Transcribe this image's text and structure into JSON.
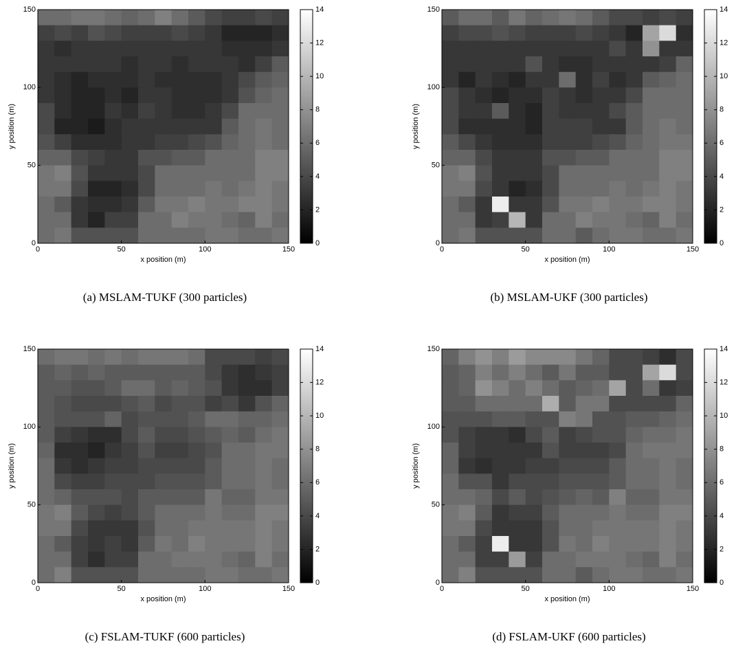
{
  "chart_data": [
    {
      "type": "heatmap",
      "caption": "(a) MSLAM-TUKF (300 particles)",
      "xlabel": "x position (m)",
      "ylabel": "y position (m)",
      "xlim": [
        0,
        150
      ],
      "ylim": [
        0,
        150
      ],
      "xticks": [
        0,
        50,
        100,
        150
      ],
      "yticks": [
        0,
        50,
        100,
        150
      ],
      "colormap": "gray",
      "clim": [
        0,
        14
      ],
      "cticks": [
        0,
        2,
        4,
        6,
        8,
        10,
        12,
        14
      ],
      "z": [
        [
          6,
          6,
          6.5,
          6.5,
          6,
          5.5,
          6,
          7,
          6,
          5,
          4,
          3.5,
          3.5,
          4,
          3.5
        ],
        [
          3.5,
          4,
          3.5,
          4.5,
          4,
          3.5,
          3.5,
          3.5,
          4,
          3.5,
          3,
          2,
          2,
          2,
          2.5
        ],
        [
          3,
          2.5,
          3,
          3,
          3,
          3,
          3,
          3,
          3,
          3,
          3,
          2.5,
          2.5,
          2.5,
          3
        ],
        [
          3,
          3,
          3,
          3,
          3,
          2.5,
          3,
          3,
          2.5,
          3,
          3,
          3,
          2.5,
          3.5,
          5
        ],
        [
          3,
          2.5,
          2,
          2.5,
          2.5,
          2.5,
          3,
          2.5,
          2.5,
          2.5,
          2.5,
          3,
          4,
          5,
          5.5
        ],
        [
          3,
          2.5,
          2,
          2,
          2.5,
          2,
          3,
          3,
          2.5,
          2.5,
          2.5,
          3,
          4.5,
          5.5,
          6
        ],
        [
          4,
          2.5,
          2,
          2,
          3,
          2.5,
          3.5,
          3,
          2.5,
          2.5,
          3,
          4,
          6,
          6,
          6
        ],
        [
          4,
          2,
          2,
          1.5,
          2.5,
          3,
          3,
          3,
          3,
          3,
          3,
          5,
          6,
          6.5,
          6
        ],
        [
          4.5,
          3.5,
          2.5,
          2.5,
          2.5,
          3,
          3,
          3.5,
          3.5,
          4,
          4.5,
          5.5,
          6,
          6.5,
          6
        ],
        [
          5.5,
          5.5,
          4,
          3.5,
          3,
          3,
          4.5,
          4.5,
          5,
          5,
          6,
          6,
          6,
          7,
          7
        ],
        [
          6.5,
          7,
          4.5,
          3,
          3,
          3,
          4,
          6,
          6,
          6,
          6,
          6,
          6,
          7,
          7
        ],
        [
          6.5,
          6.5,
          4,
          2,
          2,
          2.5,
          4,
          6,
          6,
          6,
          6.5,
          6,
          6.5,
          7,
          6.5
        ],
        [
          6,
          5,
          3,
          2.5,
          2.5,
          3,
          5,
          6.5,
          6.5,
          7,
          6.5,
          6.5,
          7,
          7,
          6.5
        ],
        [
          6,
          6,
          3,
          2,
          3.5,
          3.5,
          6,
          6,
          7,
          6.5,
          6.5,
          6,
          5.5,
          7,
          6
        ],
        [
          6,
          6.5,
          4.5,
          4.5,
          4.5,
          4.5,
          6,
          6,
          6,
          6,
          6.5,
          6.5,
          6,
          6,
          6.5
        ]
      ]
    },
    {
      "type": "heatmap",
      "caption": "(b) MSLAM-UKF (300 particles)",
      "xlabel": "x position (m)",
      "ylabel": "y position (m)",
      "xlim": [
        0,
        150
      ],
      "ylim": [
        0,
        150
      ],
      "xticks": [
        0,
        50,
        100,
        150
      ],
      "yticks": [
        0,
        50,
        100,
        150
      ],
      "colormap": "gray",
      "clim": [
        0,
        14
      ],
      "cticks": [
        0,
        2,
        4,
        6,
        8,
        10,
        12,
        14
      ],
      "z": [
        [
          5,
          6,
          6,
          5,
          6.5,
          5.5,
          6,
          6.5,
          6,
          5,
          4,
          4,
          3.5,
          4,
          3.5
        ],
        [
          3.5,
          4,
          4,
          4.5,
          4,
          3.5,
          3.5,
          3.5,
          4,
          3.5,
          3,
          2,
          9,
          12,
          2.5
        ],
        [
          3,
          3,
          3,
          3,
          3,
          3,
          3,
          3,
          3,
          3,
          4,
          3,
          8,
          3,
          3
        ],
        [
          3,
          3,
          3,
          3,
          3,
          4.5,
          3,
          2.5,
          2.5,
          3,
          3,
          3,
          3,
          3.5,
          5.5
        ],
        [
          3,
          2,
          3,
          2.5,
          2,
          3,
          3,
          6,
          2.5,
          3.5,
          2.5,
          3,
          5,
          5.5,
          6
        ],
        [
          4,
          3,
          2.5,
          2,
          2.5,
          2.5,
          3.5,
          3,
          2.5,
          3,
          3,
          4,
          6,
          6,
          6
        ],
        [
          4,
          3,
          3,
          5,
          2.5,
          2,
          3.5,
          3,
          3,
          3,
          4,
          5,
          6,
          6,
          6
        ],
        [
          4,
          2.5,
          2.5,
          2.5,
          2.5,
          2,
          3.5,
          3.5,
          3.5,
          3,
          3,
          5,
          6,
          6.5,
          6
        ],
        [
          5,
          4,
          3,
          2.5,
          2.5,
          2.5,
          3.5,
          3.5,
          3.5,
          4,
          4.5,
          5.5,
          6,
          6.5,
          6.5
        ],
        [
          5.5,
          5.5,
          4,
          3,
          3,
          3,
          4.5,
          4.5,
          5,
          5,
          6,
          6,
          6,
          7,
          7
        ],
        [
          6.5,
          7,
          4.5,
          3,
          3,
          3,
          4,
          6,
          6,
          6,
          6,
          6,
          6,
          7,
          7
        ],
        [
          6.5,
          6.5,
          4,
          3,
          2,
          2.5,
          4,
          6,
          6,
          6,
          6.5,
          6,
          6.5,
          7,
          6.5
        ],
        [
          6,
          5,
          3,
          13,
          3,
          3,
          4.5,
          6.5,
          6.5,
          7,
          6.5,
          6.5,
          7,
          7,
          6.5
        ],
        [
          6,
          6,
          3,
          3.5,
          10,
          3,
          6,
          6,
          7,
          6.5,
          6.5,
          6,
          5.5,
          7,
          6
        ],
        [
          6,
          6.5,
          4.5,
          4.5,
          4.5,
          4.5,
          6,
          6,
          5,
          6,
          6.5,
          6.5,
          6,
          6,
          6.5
        ]
      ]
    },
    {
      "type": "heatmap",
      "caption": "(c) FSLAM-TUKF (600 particles)",
      "xlabel": "x position (m)",
      "ylabel": "y position (m)",
      "xlim": [
        0,
        150
      ],
      "ylim": [
        0,
        150
      ],
      "xticks": [
        0,
        50,
        100,
        150
      ],
      "yticks": [
        0,
        50,
        100,
        150
      ],
      "colormap": "gray",
      "clim": [
        0,
        14
      ],
      "cticks": [
        0,
        2,
        4,
        6,
        8,
        10,
        12,
        14
      ],
      "z": [
        [
          6,
          6.5,
          6.5,
          6,
          6.5,
          6,
          6.5,
          6.5,
          6.5,
          6,
          4,
          4,
          4,
          3.5,
          4
        ],
        [
          5,
          5.5,
          5,
          5.5,
          5,
          5,
          5,
          5,
          5,
          5,
          4,
          3,
          2.5,
          3,
          3.5
        ],
        [
          5,
          5,
          4.5,
          4.5,
          5,
          6,
          6,
          5,
          5.5,
          5,
          4.5,
          3,
          2.5,
          2.5,
          3.5
        ],
        [
          5,
          4.5,
          4,
          4,
          4,
          4.5,
          5,
          4,
          4.5,
          4.5,
          3.5,
          4,
          3,
          4.5,
          5.5
        ],
        [
          5,
          4.5,
          4.5,
          4.5,
          5.5,
          4,
          4.5,
          4.5,
          4.5,
          5,
          6,
          6,
          5.5,
          5.5,
          6
        ],
        [
          5,
          3.5,
          3,
          2.5,
          2.5,
          4,
          5,
          4,
          4,
          4.5,
          5,
          5.5,
          5,
          6,
          6.5
        ],
        [
          5.5,
          2.5,
          2.5,
          2,
          3,
          3.5,
          4.5,
          3.5,
          3.5,
          4,
          4.5,
          6,
          6,
          6.5,
          6.5
        ],
        [
          6,
          3,
          2.5,
          3,
          3.5,
          3.5,
          4,
          4,
          4,
          4,
          5,
          6,
          6,
          6.5,
          6
        ],
        [
          6,
          4,
          3.5,
          3.5,
          4,
          4,
          4,
          4.5,
          4.5,
          4.5,
          5,
          6,
          6,
          6.5,
          6
        ],
        [
          6,
          5.5,
          4.5,
          4.5,
          4.5,
          4,
          5,
          5,
          5,
          5,
          6.5,
          5.5,
          5.5,
          6.5,
          6.5
        ],
        [
          6.5,
          7,
          5,
          4,
          3.5,
          4,
          5,
          6,
          6,
          6,
          6.5,
          6,
          6,
          7,
          7
        ],
        [
          6.5,
          6.5,
          4,
          3,
          3,
          3,
          4.5,
          6,
          6,
          6.5,
          6.5,
          6.5,
          6.5,
          7,
          6.5
        ],
        [
          6,
          5,
          3.5,
          3,
          3.5,
          3,
          5,
          6.5,
          6,
          7,
          6.5,
          6.5,
          6.5,
          7,
          6.5
        ],
        [
          6,
          6,
          3.5,
          2.5,
          3.5,
          3.5,
          6,
          6,
          6.5,
          6.5,
          6.5,
          6,
          5.5,
          7,
          6
        ],
        [
          6,
          7,
          4.5,
          4.5,
          4.5,
          4.5,
          6,
          6,
          6,
          6,
          6.5,
          6.5,
          6,
          6,
          6.5
        ]
      ]
    },
    {
      "type": "heatmap",
      "caption": "(d) FSLAM-UKF (600 particles)",
      "xlabel": "x position (m)",
      "ylabel": "y position (m)",
      "xlim": [
        0,
        150
      ],
      "ylim": [
        0,
        150
      ],
      "xticks": [
        0,
        50,
        100,
        150
      ],
      "yticks": [
        0,
        50,
        100,
        150
      ],
      "colormap": "gray",
      "clim": [
        0,
        14
      ],
      "cticks": [
        0,
        2,
        4,
        6,
        8,
        10,
        12,
        14
      ],
      "z": [
        [
          5.5,
          7,
          8,
          7,
          8.5,
          7.5,
          7.5,
          7.5,
          6.5,
          5.5,
          4,
          4,
          3.5,
          2.5,
          4
        ],
        [
          5,
          5.5,
          7,
          6,
          7,
          6,
          5,
          6.5,
          5,
          5,
          4,
          4,
          9,
          12,
          4
        ],
        [
          5,
          5.5,
          8,
          7,
          6,
          7,
          6,
          5,
          5.5,
          6,
          9,
          4,
          6,
          3,
          3.5
        ],
        [
          5,
          5,
          6,
          6,
          6,
          6,
          9.5,
          5,
          6.5,
          6.5,
          4,
          4,
          4,
          4,
          5.5
        ],
        [
          4.5,
          4.5,
          4.5,
          5,
          5,
          4.5,
          4.5,
          7,
          6.5,
          4.5,
          4.5,
          5,
          5,
          5.5,
          6
        ],
        [
          4.5,
          3.5,
          3,
          3,
          2.5,
          4,
          5,
          3.5,
          4,
          4.5,
          4.5,
          5.5,
          6,
          6,
          6.5
        ],
        [
          5.5,
          3.5,
          3,
          3,
          3,
          3,
          4.5,
          3.5,
          3.5,
          3.5,
          4,
          6,
          6.5,
          6.5,
          6.5
        ],
        [
          5.5,
          3,
          2.5,
          3,
          3,
          3.5,
          3.5,
          4,
          4,
          4,
          5,
          6,
          6,
          6.5,
          6
        ],
        [
          6,
          4.5,
          4.5,
          3,
          4,
          4,
          4,
          4.5,
          4.5,
          4.5,
          5,
          6,
          6,
          6.5,
          6
        ],
        [
          6,
          6,
          5.5,
          4,
          5,
          4,
          4.5,
          5,
          5.5,
          5,
          7,
          5.5,
          5.5,
          6.5,
          6.5
        ],
        [
          6.5,
          7,
          5,
          3,
          3.5,
          3.5,
          5,
          6,
          6,
          6,
          6.5,
          6,
          6,
          7,
          7
        ],
        [
          6.5,
          6.5,
          4,
          3,
          3,
          3,
          4.5,
          6,
          6,
          6.5,
          6.5,
          6.5,
          6.5,
          7,
          6.5
        ],
        [
          6,
          5,
          3.5,
          13,
          3,
          3,
          4.5,
          6.5,
          6,
          7,
          6.5,
          6.5,
          6.5,
          7,
          6.5
        ],
        [
          6,
          6,
          3.5,
          3.5,
          8.5,
          3.5,
          6,
          6,
          6.5,
          6.5,
          6.5,
          6,
          5.5,
          7,
          6
        ],
        [
          6,
          7,
          4.5,
          4.5,
          4.5,
          4.5,
          6,
          6,
          5,
          6,
          6.5,
          6.5,
          6,
          6,
          6.5
        ]
      ]
    }
  ]
}
